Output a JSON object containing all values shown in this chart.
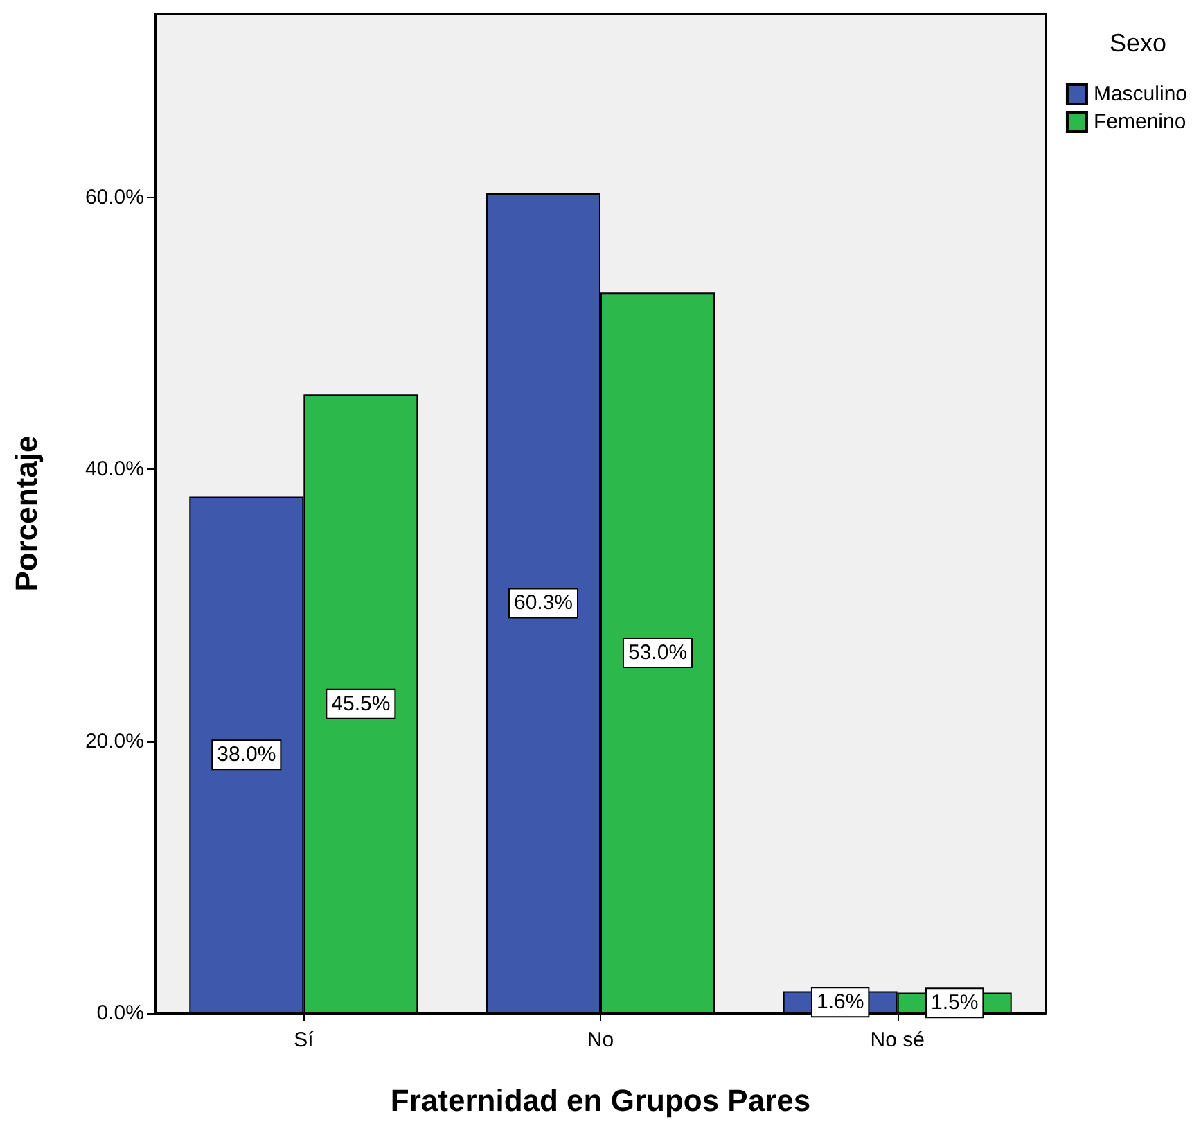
{
  "chart_data": {
    "type": "bar",
    "xlabel": "Fraternidad en Grupos Pares",
    "ylabel": "Porcentaje",
    "legend_title": "Sexo",
    "categories": [
      "Sí",
      "No",
      "No sé"
    ],
    "series": [
      {
        "name": "Masculino",
        "color": "#3e58ac",
        "values": [
          38.0,
          60.3,
          1.6
        ],
        "value_labels": [
          "38.0%",
          "60.3%",
          "1.6%"
        ]
      },
      {
        "name": "Femenino",
        "color": "#2db84b",
        "values": [
          45.5,
          53.0,
          1.5
        ],
        "value_labels": [
          "45.5%",
          "53.0%",
          "1.5%"
        ]
      }
    ],
    "ylim": [
      0,
      73.5
    ],
    "yticks": [
      {
        "value": 0,
        "label": "0.0%"
      },
      {
        "value": 20,
        "label": "20.0%"
      },
      {
        "value": 40,
        "label": "40.0%"
      },
      {
        "value": 60,
        "label": "60.0%"
      }
    ],
    "grid": false,
    "legend": "top right"
  }
}
